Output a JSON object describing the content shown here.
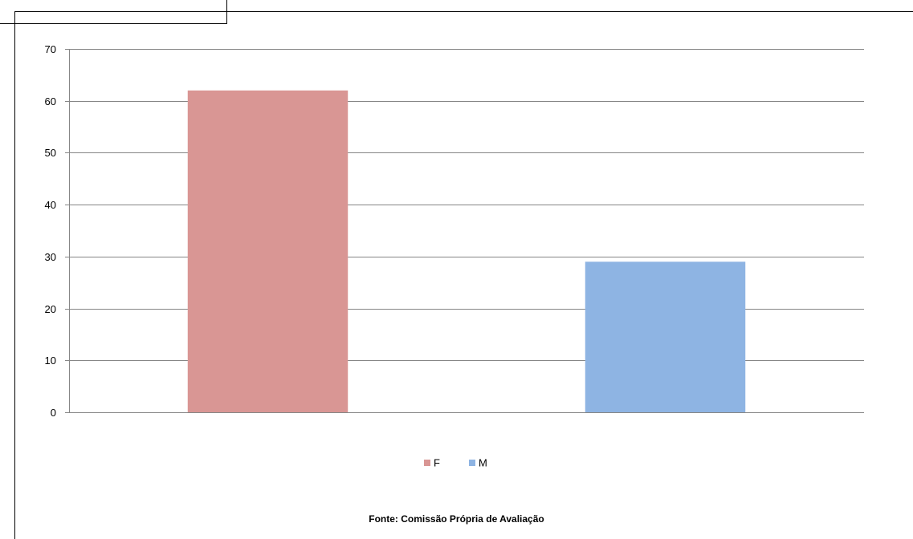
{
  "chart_data": {
    "type": "bar",
    "categories": [
      "F",
      "M"
    ],
    "series": [
      {
        "name": "F",
        "values": [
          62,
          null
        ],
        "color": "#d99694"
      },
      {
        "name": "M",
        "values": [
          null,
          29
        ],
        "color": "#8eb4e3"
      }
    ],
    "ylim": [
      0,
      70
    ],
    "yticks": [
      0,
      10,
      20,
      30,
      40,
      50,
      60,
      70
    ],
    "grid": true,
    "legend": "bottom",
    "source": "Fonte: Comissão Própria de Avaliação"
  }
}
